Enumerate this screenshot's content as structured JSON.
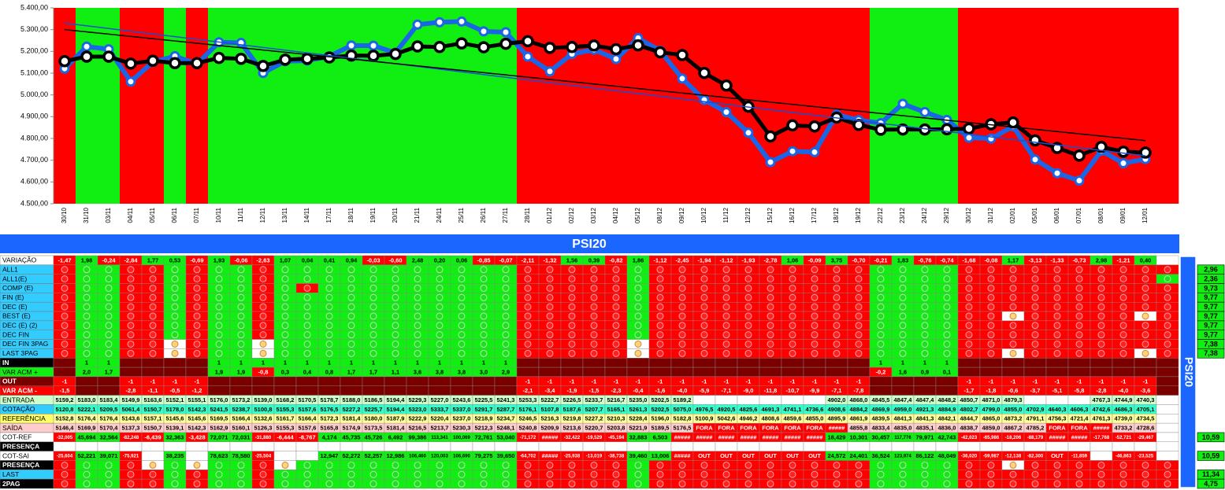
{
  "chart_data": {
    "type": "line",
    "categories": [
      "30/10",
      "31/10",
      "03/11",
      "04/11",
      "05/11",
      "06/11",
      "07/11",
      "10/11",
      "11/11",
      "12/11",
      "13/11",
      "14/11",
      "17/11",
      "18/11",
      "19/11",
      "20/11",
      "21/11",
      "24/11",
      "25/11",
      "26/11",
      "27/11",
      "28/11",
      "01/12",
      "02/12",
      "03/12",
      "04/12",
      "05/12",
      "08/12",
      "09/12",
      "10/12",
      "11/12",
      "12/12",
      "15/12",
      "16/12",
      "17/12",
      "18/12",
      "19/12",
      "22/12",
      "23/12",
      "24/12",
      "29/12",
      "30/12",
      "31/12",
      "02/01",
      "05/01",
      "06/01",
      "07/01",
      "08/01",
      "09/01",
      "12/01",
      null
    ],
    "ylim": [
      4500,
      5400
    ],
    "yticks": [
      {
        "value": 4500,
        "label": "4.500,00"
      },
      {
        "value": 4600,
        "label": "4.600,00"
      },
      {
        "value": 4700,
        "label": "4.700,00"
      },
      {
        "value": 4800,
        "label": "4.800,00"
      },
      {
        "value": 4900,
        "label": "4.900,00"
      },
      {
        "value": 5000,
        "label": "5.000,00"
      },
      {
        "value": 5100,
        "label": "5.100,00"
      },
      {
        "value": 5200,
        "label": "5.200,00"
      },
      {
        "value": 5300,
        "label": "5.300,00"
      },
      {
        "value": 5400,
        "label": "5.400,00"
      }
    ],
    "band_codes": "RGGRRGRGGGGGGGGGGGGGGRRRRRRRRRRRRRRRRGGGGRRRRRRRRRR",
    "band_palette": {
      "R": "#ff0000",
      "G": "#11ee11"
    },
    "series": [
      {
        "color": "#1a66e6",
        "values": [
          5121,
          5222,
          5210,
          5061,
          5151,
          5178,
          5142,
          5242,
          5239,
          5101,
          5155,
          5158,
          5177,
          5227,
          5226,
          5194,
          5323,
          5334,
          5337,
          5292,
          5288,
          5176,
          5108,
          5188,
          5208,
          5165,
          5261,
          5203,
          5075,
          4977,
          4921,
          4826,
          4691,
          4741,
          4737,
          4909,
          4884,
          4870,
          4959,
          4921,
          4885,
          4803,
          4799,
          4855,
          4703,
          4640,
          4606,
          4743,
          4686,
          4705,
          null
        ]
      },
      {
        "color": "#000000",
        "values": [
          5155,
          5176,
          5176,
          5144,
          5157,
          5146,
          5146,
          5170,
          5166,
          5133,
          5162,
          5166,
          5172,
          5181,
          5180,
          5188,
          5223,
          5220,
          5237,
          5219,
          5235,
          5247,
          5216,
          5220,
          5227,
          5210,
          5228,
          5196,
          5183,
          5101,
          5043,
          4946,
          4809,
          4860,
          4855,
          4896,
          4862,
          4840,
          4841,
          4841,
          4842,
          4845,
          4865,
          4873,
          4791,
          4756,
          4721,
          4761,
          4739,
          4735,
          null
        ]
      }
    ],
    "trend_lines": [
      {
        "color": "#1a4fd0",
        "values": [
          5330,
          4720
        ]
      },
      {
        "color": "#000000",
        "values": [
          5300,
          4790
        ]
      }
    ]
  },
  "table": {
    "title": "PSI20",
    "side_title": "PSI20",
    "palette": {
      "R": "#ff0000",
      "G": "#11ee11",
      "D": "#7a0000",
      "W": "#ffffff",
      "Y": "#ffffff",
      "L": "#ccffcc",
      "Q": "#33ffcc",
      "F": "#ffff99",
      "P": "#ffcccc"
    },
    "dot_palette": {
      "R": "#ff2020",
      "G": "#22dd22",
      "Y": "#ffd27f"
    },
    "summary_bg": "#11ee11",
    "rows": [
      {
        "label": "VARIAÇÃO",
        "label_bg": "#ffffff",
        "codes": "RGRRGGRGRRGGGGRRGGGRRRRGGRGRRRRRRGRGRRGRRRRGRRRGRGW",
        "cells": [
          "-1,47",
          "1,98",
          "-0,24",
          "-2,84",
          "1,77",
          "0,53",
          "-0,69",
          "1,93",
          "-0,06",
          "-2,63",
          "1,07",
          "0,04",
          "0,41",
          "0,94",
          "-0,03",
          "-0,60",
          "2,48",
          "0,20",
          "0,06",
          "-0,85",
          "-0,07",
          "-2,11",
          "-1,32",
          "1,56",
          "0,39",
          "-0,82",
          "1,86",
          "-1,12",
          "-2,45",
          "-1,94",
          "-1,12",
          "-1,93",
          "-2,78",
          "1,06",
          "-0,09",
          "3,75",
          "-0,70",
          "-0,21",
          "1,83",
          "-0,76",
          "-0,74",
          "-1,68",
          "-0,08",
          "1,17",
          "-3,13",
          "-1,33",
          "-0,73",
          "2,98",
          "-1,21",
          "0,40",
          null
        ]
      },
      {
        "label": "ALL1",
        "label_bg": "#33ccff",
        "dots": true,
        "codes": "RGGRRGRGGRGGGGGGGGGGGRRRRRGRRRRRRRRRRGGGGRRRRRRRRRR",
        "summary": "2,96"
      },
      {
        "label": "ALL1(E)",
        "label_bg": "#33ccff",
        "dots": true,
        "codes": "RGGRRGRGGRGGGGGGGGGGGRRRRRGRRRRRRRRRRGGGGRRRRRRRRRG",
        "summary": "2,36"
      },
      {
        "label": "COMP (E)",
        "label_bg": "#33ccff",
        "dots": true,
        "codes": "RGGRRGRGGRGRGGGGGGGGGRRRRRGRRRRRRRRRRGGGGRRRRRRRRRR",
        "summary": "9,73"
      },
      {
        "label": "FIN (E)",
        "label_bg": "#33ccff",
        "dots": true,
        "codes": "RGGRRGRGGRGGGGGGGGGGGRRRRRGRRRRRRRRRRGGGGRRRRRRRRRR",
        "summary": "9,77"
      },
      {
        "label": "DEC (E)",
        "label_bg": "#33ccff",
        "dots": true,
        "codes": "RGGRRGRGGRGGGGGGGGGGGRRRRRGRRRRRRRRRRGGGGRRRRRRRRRR",
        "summary": "9,77"
      },
      {
        "label": "BEST (E)",
        "label_bg": "#33ccff",
        "dots": true,
        "codes": "RGGRRGRGGRGGGGGGGGGGGRRRRRGRRRRRRRRRRGGGGRRYRRRRRYR",
        "summary": "9,77"
      },
      {
        "label": "DEC (E) (2)",
        "label_bg": "#33ccff",
        "dots": true,
        "codes": "RGGRRGRGGRGGGGGGGGGGGRRRRRGRRRRRRRRRRGGGGRRRRRRRRRR",
        "summary": "9,77"
      },
      {
        "label": "DEC FIN",
        "label_bg": "#33ccff",
        "dots": true,
        "codes": "RGGRRGRGGRGGGGGGGGGGGRRRRRGRRRRRRRRRRGGGGRRRRRRRRRR",
        "summary": "9,77"
      },
      {
        "label": "DEC FIN 3PAG",
        "label_bg": "#33ccff",
        "dots": true,
        "codes": "RGGRRYRGGYGGGGGGGGGGGRRRRRYRRRRRRRRRRGGGGRRRRRRRRRR",
        "summary": "7,38"
      },
      {
        "label": "LAST 3PAG",
        "label_bg": "#33ccff",
        "dots": true,
        "codes": "RGGRRYRGGYGGGGGGGGGGGRRRRRYRRRRRRRRRRGGGGRRYRRRRRYR",
        "summary": "7,38"
      },
      {
        "label": "IN",
        "label_bg": "#000000",
        "codes": "DGGDDDDGGGGGGGGGGGGGGDDDDDDDDDDDDDDDDGGGGDDDDDDDDDD",
        "cells": [
          null,
          1,
          1,
          null,
          null,
          null,
          null,
          1,
          1,
          1,
          1,
          1,
          1,
          1,
          1,
          1,
          1,
          1,
          1,
          1,
          1,
          null,
          null,
          null,
          null,
          null,
          null,
          null,
          null,
          null,
          null,
          null,
          null,
          null,
          null,
          null,
          null,
          1,
          1,
          1,
          1,
          null,
          null,
          null,
          null,
          null,
          null,
          null,
          null,
          null,
          null
        ]
      },
      {
        "label": "VAR ACM +",
        "label_bg": "#11ee11",
        "codes": "DGGDDDDGGRGGGGGGGGGGGDDDDDDDDDDDDDDDDRGGGDDDDDDDDDD",
        "cells": [
          null,
          "2,0",
          "1,7",
          null,
          null,
          null,
          null,
          "1,9",
          "1,9",
          "-0,8",
          "0,3",
          "0,4",
          "0,8",
          "1,7",
          "1,7",
          "1,1",
          "3,6",
          "3,8",
          "3,8",
          "3,0",
          "2,9",
          null,
          null,
          null,
          null,
          null,
          null,
          null,
          null,
          null,
          null,
          null,
          null,
          null,
          null,
          null,
          null,
          "-0,2",
          "1,6",
          "0,9",
          "0,1",
          null,
          null,
          null,
          null,
          null,
          null,
          null,
          null,
          null,
          null
        ]
      },
      {
        "label": "OUT",
        "label_bg": "#7a0000",
        "codes": "RDDRRRRDDDDDDDDDDDDDDRRRRRRRRRRRRRRRRDDDDRRRRRRRRRD",
        "cells": [
          -1,
          null,
          null,
          -1,
          -1,
          -1,
          -1,
          null,
          null,
          null,
          null,
          null,
          null,
          null,
          null,
          null,
          null,
          null,
          null,
          null,
          null,
          -1,
          -1,
          -1,
          -1,
          -1,
          -1,
          -1,
          -1,
          -1,
          -1,
          -1,
          -1,
          -1,
          -1,
          -1,
          -1,
          null,
          null,
          null,
          null,
          -1,
          -1,
          -1,
          -1,
          -1,
          -1,
          -1,
          -1,
          -1,
          null
        ]
      },
      {
        "label": "VAR ACM -",
        "label_bg": "#ff0000",
        "codes": "RDDRRRRDDDDDDDDDDDDDDRRRRRRRRRRRRRRRRDDDDRRRRRRRRRD",
        "cells": [
          "-1,5",
          null,
          null,
          "-2,8",
          "-1,1",
          "-0,5",
          "-1,2",
          null,
          null,
          null,
          null,
          null,
          null,
          null,
          null,
          null,
          null,
          null,
          null,
          null,
          null,
          "-2,1",
          "-3,4",
          "-1,9",
          "-1,5",
          "-2,3",
          "-0,4",
          "-1,6",
          "-4,0",
          "-5,9",
          "-7,1",
          "-9,0",
          "-11,8",
          "-10,7",
          "-9,9",
          "-7,1",
          "-7,8",
          null,
          null,
          null,
          null,
          "-1,7",
          "-1,8",
          "-0,6",
          "-3,7",
          "-5,1",
          "-5,8",
          "-2,8",
          "-4,0",
          "-3,6",
          null
        ]
      },
      {
        "label": "ENTRADA",
        "label_bg": "#ccffcc",
        "codes": "LLLLLLLLLLLLLLLLLLLLLLLLLLLLLWWWWWWLLLLLLLLLWWWLLLW",
        "cells": [
          "5159,2",
          "5183,0",
          "5183,4",
          "5149,9",
          "5163,6",
          "5152,1",
          "5155,1",
          "5176,0",
          "5173,2",
          "5139,0",
          "5168,2",
          "5170,5",
          "5178,7",
          "5188,0",
          "5186,5",
          "5194,4",
          "5229,3",
          "5227,0",
          "5243,6",
          "5225,5",
          "5241,3",
          "5253,3",
          "5222,7",
          "5226,5",
          "5233,7",
          "5216,7",
          "5235,0",
          "5202,5",
          "5189,2",
          null,
          null,
          null,
          null,
          null,
          null,
          "4902,0",
          "4868,0",
          "4845,5",
          "4847,4",
          "4847,4",
          "4848,2",
          "4850,7",
          "4871,0",
          "4879,3",
          null,
          null,
          null,
          "4767,3",
          "4744,9",
          "4740,3",
          null
        ]
      },
      {
        "label": "COTAÇÃO",
        "label_bg": "#33ccff",
        "codes": "QQQQQQQQQQQQQQQQQQQQQQQQQQQQQQQQQQQQQQQQQQQQQQQQQQW",
        "cells": [
          "5120,8",
          "5222,1",
          "5209,5",
          "5061,4",
          "5150,7",
          "5178,0",
          "5142,3",
          "5241,5",
          "5238,7",
          "5100,8",
          "5155,3",
          "5157,6",
          "5176,5",
          "5227,2",
          "5225,7",
          "5194,4",
          "5323,0",
          "5333,7",
          "5337,0",
          "5291,7",
          "5287,7",
          "5176,1",
          "5107,8",
          "5187,6",
          "5207,7",
          "5165,1",
          "5261,3",
          "5202,5",
          "5075,0",
          "4976,5",
          "4920,5",
          "4825,6",
          "4691,3",
          "4741,1",
          "4736,6",
          "4908,6",
          "4884,2",
          "4869,9",
          "4959,0",
          "4921,3",
          "4884,9",
          "4802,7",
          "4799,0",
          "4855,0",
          "4702,9",
          "4640,3",
          "4606,3",
          "4742,6",
          "4686,3",
          "4705,1",
          null
        ]
      },
      {
        "label": "REFERÊNCIA",
        "label_bg": "#ffff66",
        "codes": "FFFFFFFFFFFFFFFFFFFFFFFFFFFFFFFFFFFFFFFFFFFFFFFFFFW",
        "cells": [
          "5152,8",
          "5176,4",
          "5176,4",
          "5143,6",
          "5157,1",
          "5145,6",
          "5145,6",
          "5169,5",
          "5166,4",
          "5132,6",
          "5161,7",
          "5166,4",
          "5172,3",
          "5181,4",
          "5180,0",
          "5187,9",
          "5222,9",
          "5220,4",
          "5237,0",
          "5218,9",
          "5234,7",
          "5246,5",
          "5216,3",
          "5219,8",
          "5227,2",
          "5210,3",
          "5228,4",
          "5196,0",
          "5182,8",
          "5100,9",
          "5042,6",
          "4946,2",
          "4808,6",
          "4859,6",
          "4855,0",
          "4895,9",
          "4861,9",
          "4839,5",
          "4841,3",
          "4841,3",
          "4842,1",
          "4844,7",
          "4865,0",
          "4873,2",
          "4791,1",
          "4756,3",
          "4721,4",
          "4761,3",
          "4739,0",
          "4734,5",
          null
        ]
      },
      {
        "label": "SAÍDA",
        "label_bg": "#ffcccc",
        "codes": "PPPPPPPPPPPPPPPPPPPPPPPPPPPPPRRRRRRRPPPPPPPPPRRRPPW",
        "cells": [
          "5146,4",
          "5169,9",
          "5170,4",
          "5137,3",
          "5150,7",
          "5139,1",
          "5142,3",
          "5162,9",
          "5160,1",
          "5126,3",
          "5155,3",
          "5157,6",
          "5165,8",
          "5174,9",
          "5173,5",
          "5181,4",
          "5216,5",
          "5213,7",
          "5230,3",
          "5212,3",
          "5248,1",
          "5240,8",
          "5209,9",
          "5213,6",
          "5220,7",
          "5203,8",
          "5221,9",
          "5189,5",
          "5176,5",
          "FORA",
          "FORA",
          "FORA",
          "FORA",
          "FORA",
          "FORA",
          "#####",
          "4855,8",
          "4833,4",
          "4835,0",
          "4835,1",
          "4836,0",
          "4838,7",
          "4859,0",
          "4867,2",
          "4785,2",
          "FORA",
          "FORA",
          "#####",
          "4733,2",
          "4728,6",
          null
        ]
      },
      {
        "label": "COT-REF",
        "label_bg": "#ffffff",
        "codes": "RGGRRGRGGRRRGGGGGGGGGRRRRRGGRRRRRRRGGGGGGRRRRRRRRRW",
        "cells": [
          "-32,005",
          "45,694",
          "32,564",
          "-82,248",
          "-6,439",
          "32,363",
          "-3,428",
          "72,071",
          "72,031",
          "-31,880",
          "-6,444",
          "-8,767",
          "4,174",
          "45,735",
          "45,726",
          "6,492",
          "99,386",
          "113,341",
          "100,069",
          "72,761",
          "53,040",
          "-71,172",
          "#####",
          "-32,422",
          "-19,529",
          "-45,194",
          "32,883",
          "6,503",
          "#####",
          "#####",
          "#####",
          "#####",
          "#####",
          "#####",
          "#####",
          "18,429",
          "10,301",
          "30,457",
          "117,776",
          "79,971",
          "42,743",
          "-42,023",
          "-65,986",
          "-18,206",
          "-88,179",
          "#####",
          "#####",
          "-17,768",
          "-52,721",
          "-29,467",
          null
        ],
        "summary": "10,59"
      },
      {
        "label": "PRESENÇA",
        "label_bg": "#000000",
        "codes": "WWWWWWWWWWWWWWWWWWWWWWWWWWWWWWWWWWWWWWWWWWWWWWWWWWW"
      },
      {
        "label": "COT-SAI",
        "label_bg": "#ffffff",
        "codes": "RGGRWGWGGRWWGGGGGGGGGRRRRRGGRRRRRRRGGGGGGRRRRRRWRRW",
        "cells": [
          "-25,604",
          "52,221",
          "39,071",
          "-75,921",
          null,
          "38,235",
          null,
          "78,623",
          "78,580",
          "-25,504",
          null,
          null,
          "12,947",
          "52,272",
          "52,257",
          "12,986",
          "106,460",
          "120,003",
          "106,690",
          "79,275",
          "39,650",
          "-64,702",
          "#####",
          "-25,938",
          "-13,019",
          "-38,738",
          "39,460",
          "13,006",
          "#####",
          "OUT",
          "OUT",
          "OUT",
          "OUT",
          "OUT",
          "OUT",
          "24,572",
          "24,401",
          "36,524",
          "123,974",
          "86,122",
          "48,049",
          "-36,020",
          "-59,987",
          "-12,138",
          "-82,300",
          "OUT",
          "-11,859",
          null,
          "-46,863",
          "-23,525",
          null
        ],
        "summary": "10,59"
      },
      {
        "label": "PRESENÇA",
        "label_bg": "#000000",
        "dots": true,
        "codes": "RGGRYGYGGRYGGGGGGGGGGRRRRRGRRRRRRRRRRGGGGRRYRRRRRRR"
      },
      {
        "label": "LAST",
        "label_bg": "#33ccff",
        "dots": true,
        "codes": "RGGRRGRGGRGGGGGGGGGGGRRRRRGRRRRRRRRRRGGGGRRRRRRRRRR",
        "summary": "11,34"
      },
      {
        "label": "2PAG",
        "label_bg": "#000000",
        "dots": true,
        "codes": "RGGRRGRGGRGGGGGGGGGGGRRRRRGRRRRRRRRRRGGGGRRRRRRRRRR",
        "summary": "4,75"
      }
    ]
  }
}
